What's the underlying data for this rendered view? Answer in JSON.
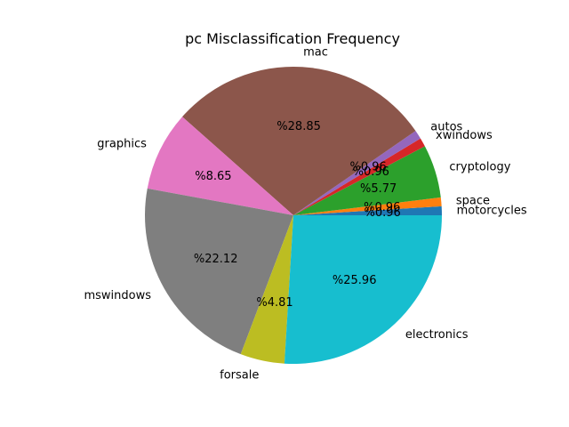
{
  "chart_data": {
    "type": "pie",
    "title": "pc Misclassification Frequency",
    "start_angle_deg": 0,
    "direction": "counterclockwise",
    "pct_prefix": "%",
    "slices": [
      {
        "label": "motorcycles",
        "value": 0.96,
        "color": "#1f77b4"
      },
      {
        "label": "space",
        "value": 0.96,
        "color": "#ff7f0e"
      },
      {
        "label": "cryptology",
        "value": 5.77,
        "color": "#2ca02c"
      },
      {
        "label": "xwindows",
        "value": 0.96,
        "color": "#d62728"
      },
      {
        "label": "autos",
        "value": 0.96,
        "color": "#9467bd"
      },
      {
        "label": "mac",
        "value": 28.85,
        "color": "#8c564b"
      },
      {
        "label": "graphics",
        "value": 8.65,
        "color": "#e377c2"
      },
      {
        "label": "mswindows",
        "value": 22.12,
        "color": "#7f7f7f"
      },
      {
        "label": "forsale",
        "value": 4.81,
        "color": "#bcbd22"
      },
      {
        "label": "electronics",
        "value": 25.96,
        "color": "#17becf"
      }
    ]
  }
}
